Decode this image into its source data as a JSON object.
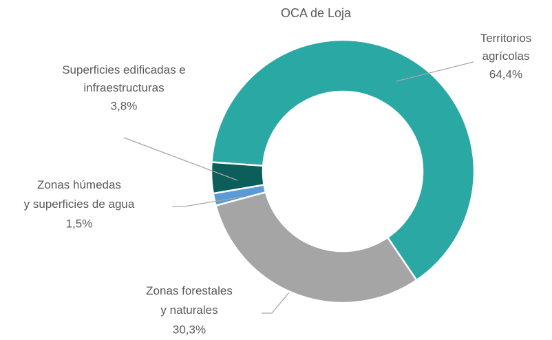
{
  "chart_data": {
    "type": "pie",
    "title": "OCA de Loja",
    "donut": true,
    "categories": [
      "Territorios agrícolas",
      "Zonas forestales y naturales",
      "Zonas húmedas y superficies de agua",
      "Superficies edificadas e infraestructuras"
    ],
    "values": [
      64.4,
      30.3,
      1.5,
      3.8
    ],
    "value_labels": [
      "64,4%",
      "30,3%",
      "1,5%",
      "3,8%"
    ],
    "colors": [
      "#2aa8a4",
      "#a5a5a5",
      "#5b9bd5",
      "#0b5e5a"
    ]
  }
}
